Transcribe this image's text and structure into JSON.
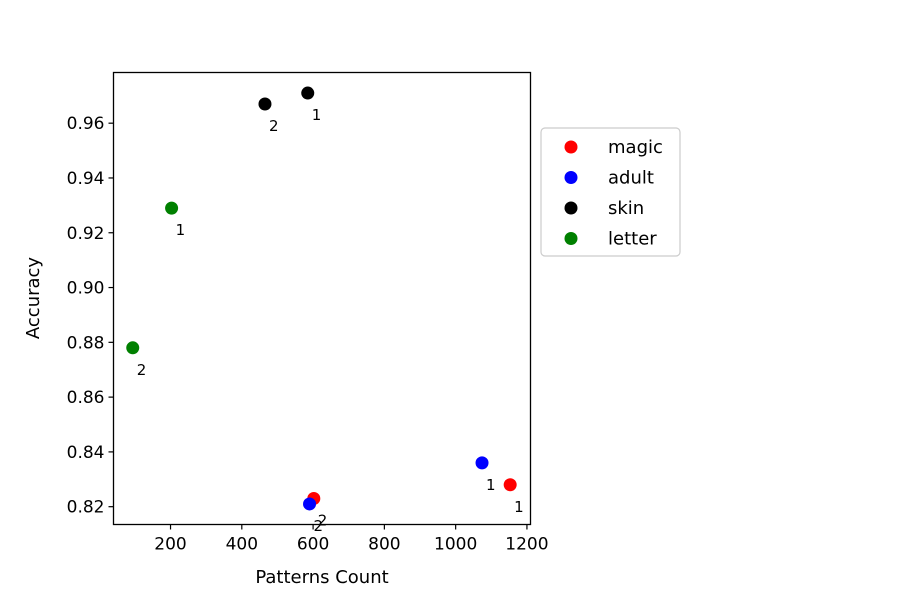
{
  "chart_data": {
    "type": "scatter",
    "xlabel": "Patterns Count",
    "ylabel": "Accuracy",
    "xlim": [
      40,
      1210
    ],
    "ylim": [
      0.8135,
      0.9785
    ],
    "xticks": [
      200,
      400,
      600,
      800,
      1000,
      1200
    ],
    "yticks": [
      0.82,
      0.84,
      0.86,
      0.88,
      0.9,
      0.92,
      0.94,
      0.96
    ],
    "ytick_labels": [
      "0.82",
      "0.84",
      "0.86",
      "0.88",
      "0.90",
      "0.92",
      "0.94",
      "0.96"
    ],
    "grid": false,
    "legend_position": "outside-right",
    "series": [
      {
        "name": "magic",
        "color": "#ff0000",
        "points": [
          {
            "x": 1153,
            "y": 0.828,
            "label": "1"
          },
          {
            "x": 602,
            "y": 0.823,
            "label": "2"
          }
        ]
      },
      {
        "name": "adult",
        "color": "#0000ff",
        "points": [
          {
            "x": 1074,
            "y": 0.836,
            "label": "1"
          },
          {
            "x": 590,
            "y": 0.821,
            "label": "2"
          }
        ]
      },
      {
        "name": "skin",
        "color": "#000000",
        "points": [
          {
            "x": 585,
            "y": 0.971,
            "label": "1"
          },
          {
            "x": 465,
            "y": 0.967,
            "label": "2"
          }
        ]
      },
      {
        "name": "letter",
        "color": "#008000",
        "points": [
          {
            "x": 203,
            "y": 0.929,
            "label": "1"
          },
          {
            "x": 94,
            "y": 0.878,
            "label": "2"
          }
        ]
      }
    ]
  }
}
